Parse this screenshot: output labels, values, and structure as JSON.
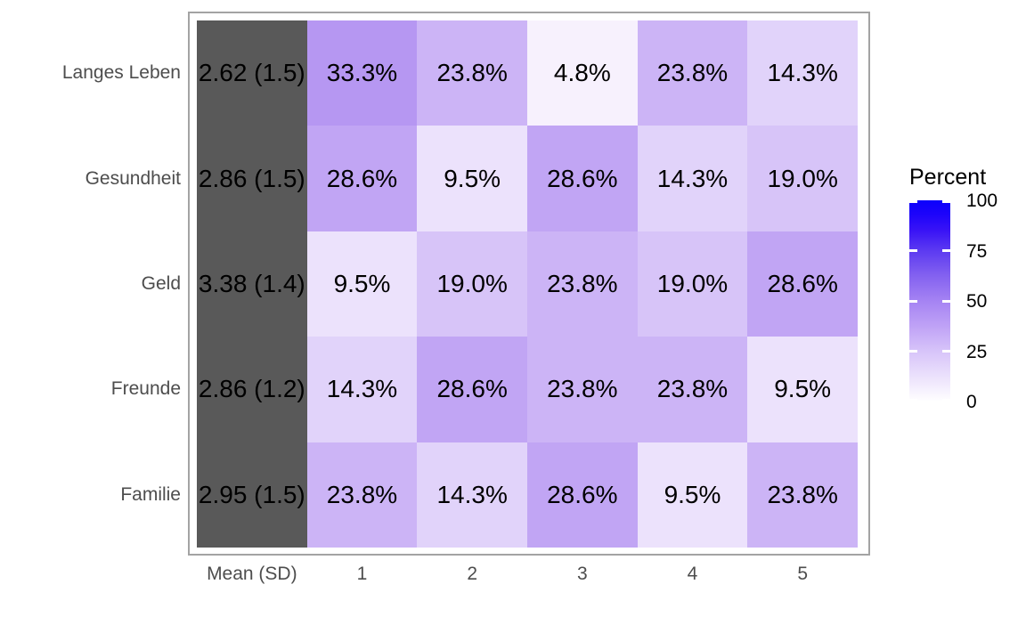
{
  "chart_data": {
    "type": "heatmap",
    "title": "",
    "rows": [
      "Langes Leben",
      "Gesundheit",
      "Geld",
      "Freunde",
      "Familie"
    ],
    "columns": [
      "Mean (SD)",
      "1",
      "2",
      "3",
      "4",
      "5"
    ],
    "mean_sd": [
      "2.62 (1.5)",
      "2.86 (1.5)",
      "3.38 (1.4)",
      "2.86 (1.2)",
      "2.95 (1.5)"
    ],
    "series_percent": [
      [
        33.3,
        23.8,
        4.8,
        23.8,
        14.3
      ],
      [
        28.6,
        9.5,
        28.6,
        14.3,
        19.0
      ],
      [
        9.5,
        19.0,
        23.8,
        19.0,
        28.6
      ],
      [
        14.3,
        28.6,
        23.8,
        23.8,
        9.5
      ],
      [
        23.8,
        14.3,
        28.6,
        9.5,
        23.8
      ]
    ],
    "cell_labels": [
      [
        "33.3%",
        "23.8%",
        "4.8%",
        "23.8%",
        "14.3%"
      ],
      [
        "28.6%",
        "9.5%",
        "28.6%",
        "14.3%",
        "19.0%"
      ],
      [
        "9.5%",
        "19.0%",
        "23.8%",
        "19.0%",
        "28.6%"
      ],
      [
        "14.3%",
        "28.6%",
        "23.8%",
        "23.8%",
        "9.5%"
      ],
      [
        "23.8%",
        "14.3%",
        "28.6%",
        "9.5%",
        "23.8%"
      ]
    ],
    "value_colors": {
      "4.8": "#f7f1fd",
      "9.5": "#ece2fc",
      "14.3": "#e1d3fa",
      "19.0": "#d7c4f8",
      "23.8": "#ccb4f6",
      "28.6": "#c1a5f4",
      "33.3": "#b697f2"
    },
    "legend": {
      "title": "Percent",
      "position": "right",
      "ticks": [
        {
          "label": "100",
          "value": 100
        },
        {
          "label": "75",
          "value": 75
        },
        {
          "label": "50",
          "value": 50
        },
        {
          "label": "25",
          "value": 25
        },
        {
          "label": "0",
          "value": 0
        }
      ],
      "gradient_stops": [
        {
          "pos": 0,
          "color": "#0c00fc"
        },
        {
          "pos": 7,
          "color": "#1d04fa"
        },
        {
          "pos": 15,
          "color": "#3913f6"
        },
        {
          "pos": 25,
          "color": "#5c3af1"
        },
        {
          "pos": 37,
          "color": "#8260f0"
        },
        {
          "pos": 50,
          "color": "#a583f3"
        },
        {
          "pos": 63,
          "color": "#c0a3f6"
        },
        {
          "pos": 75,
          "color": "#d7c4f9"
        },
        {
          "pos": 88,
          "color": "#ece2fc"
        },
        {
          "pos": 100,
          "color": "#ffffff"
        }
      ]
    },
    "ylim": [
      0,
      100
    ],
    "style": {
      "mean_column_fill": "#595959",
      "panel_border_color": "#a3a3a3",
      "axis_text_color": "#4d4d4d",
      "cell_text_color": "#000000",
      "scale_low": "#ffffff",
      "scale_high": "#0000ff",
      "grid": "off"
    }
  }
}
